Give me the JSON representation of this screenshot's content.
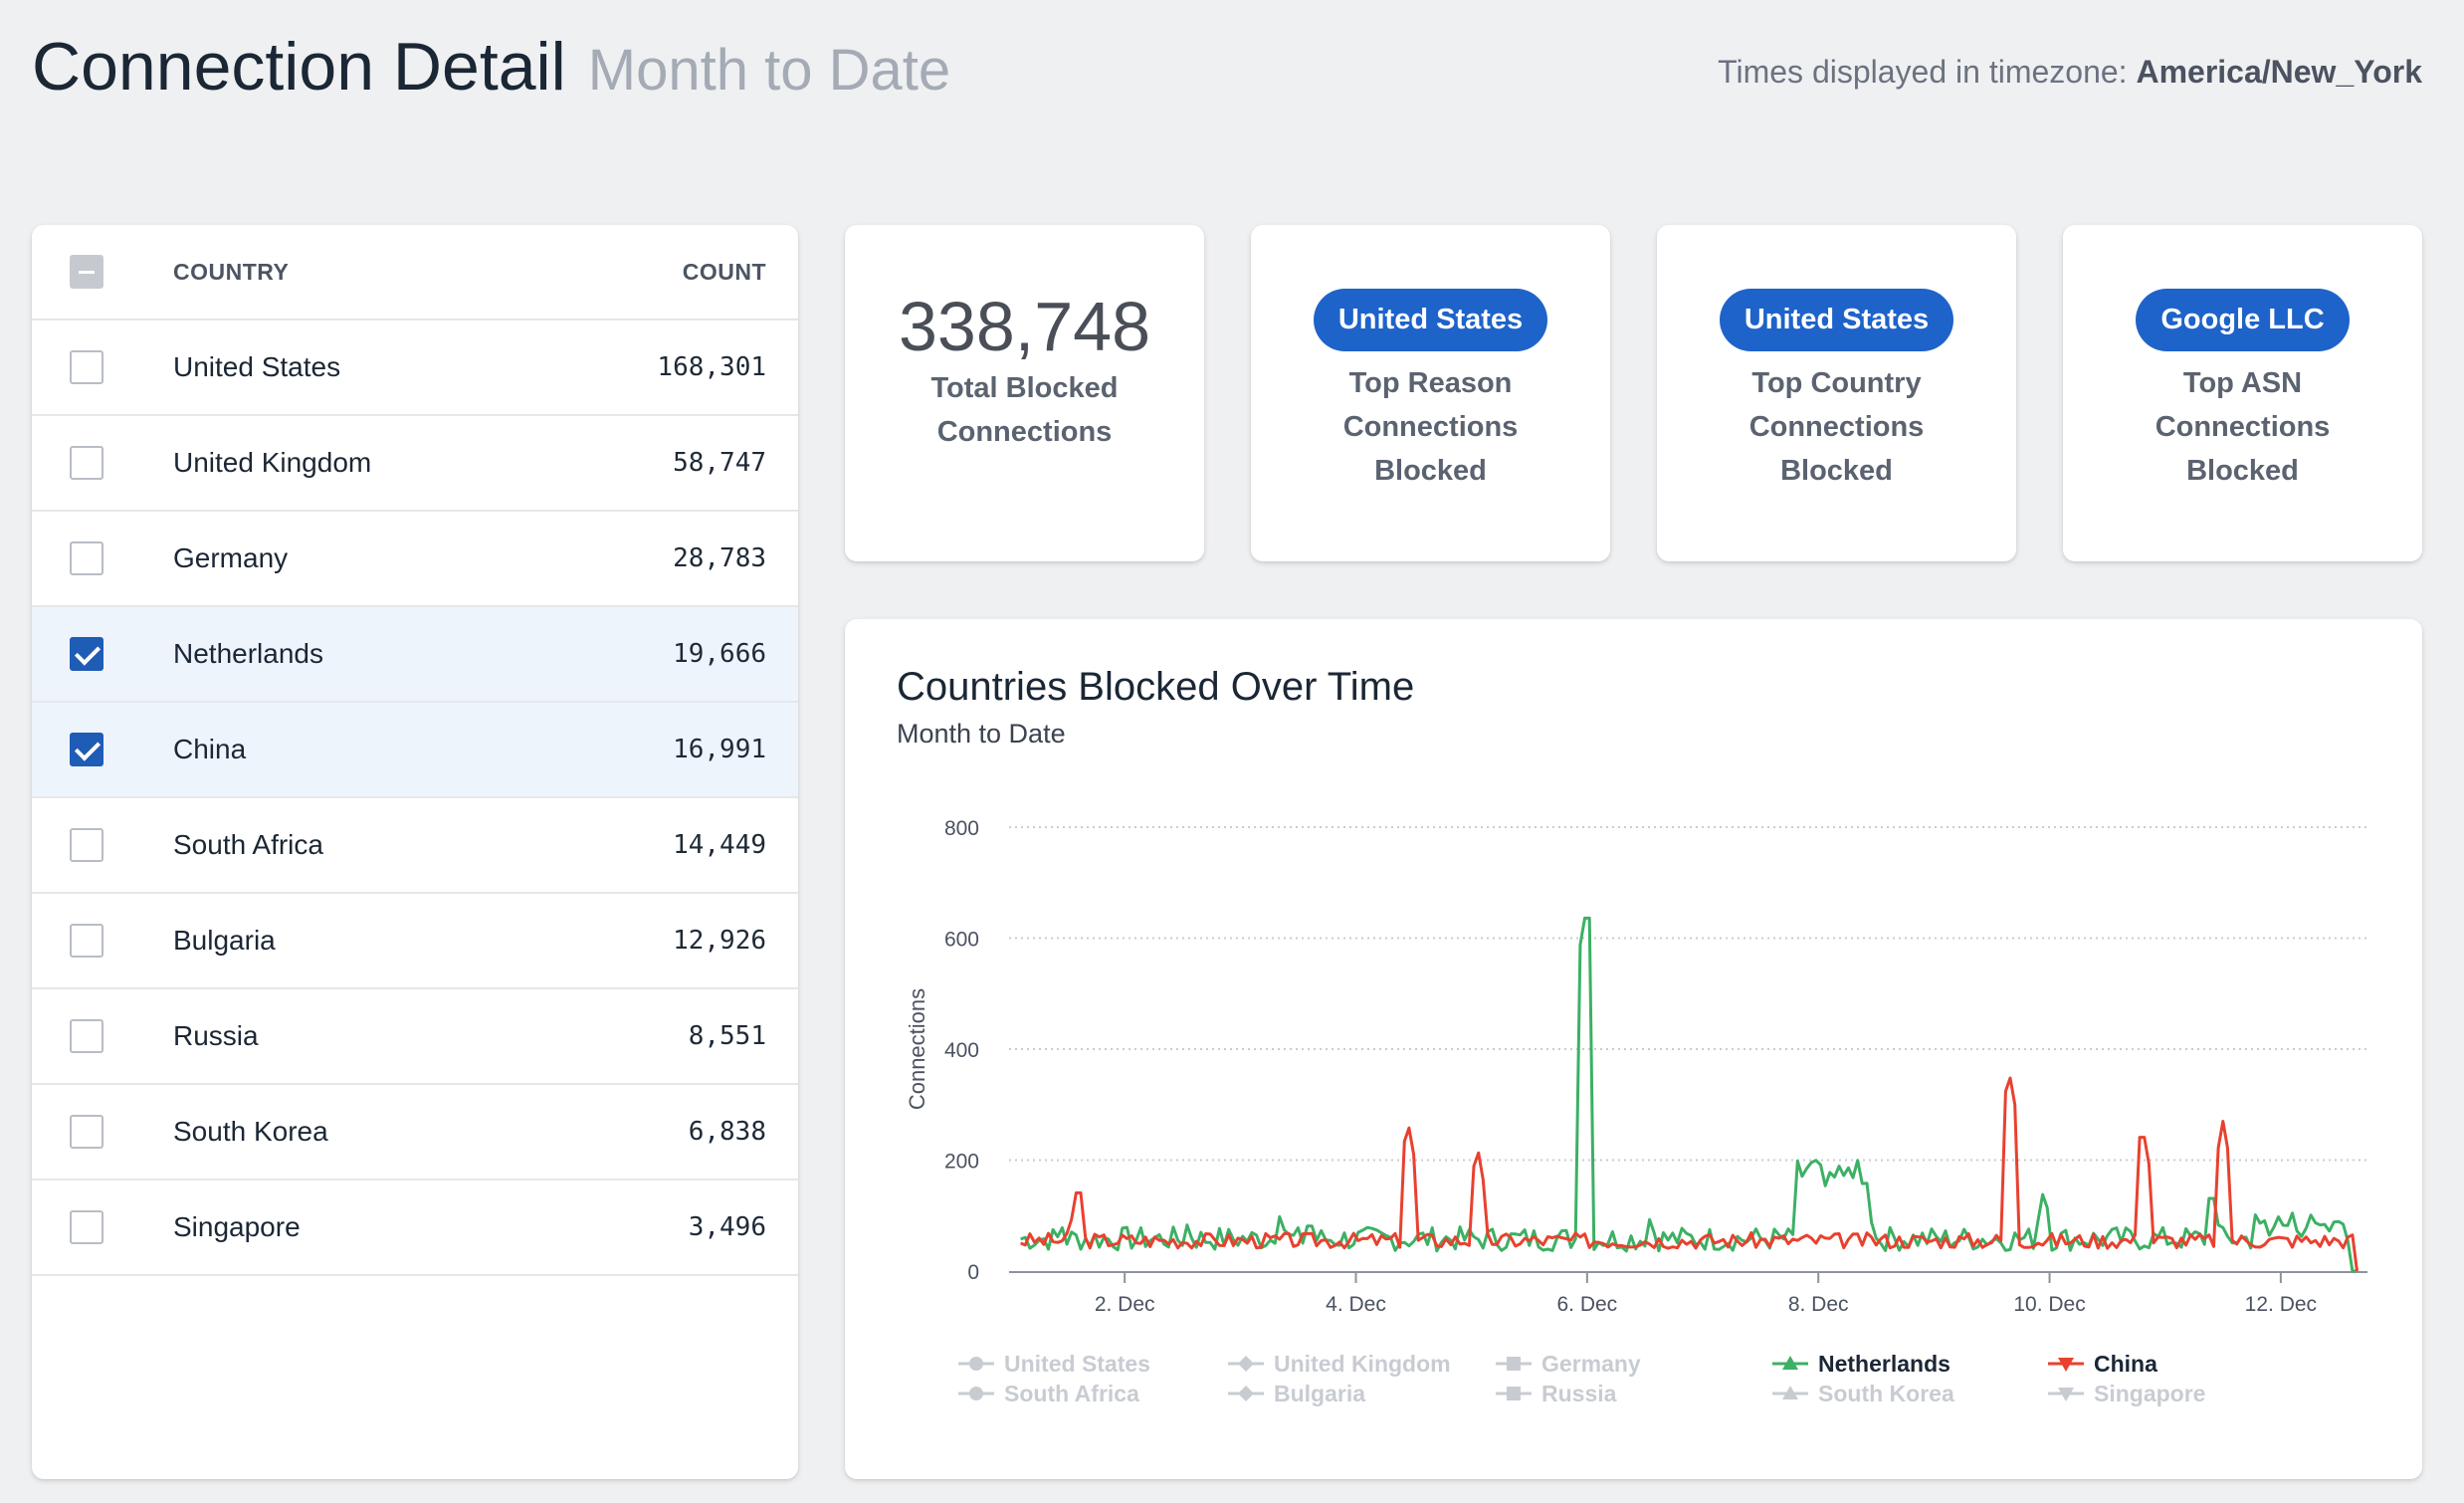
{
  "header": {
    "title": "Connection Detail",
    "subtitle": "Month to Date",
    "tz_label": "Times displayed in timezone: ",
    "tz_value": "America/New_York"
  },
  "table": {
    "col_country": "COUNTRY",
    "col_count": "COUNT",
    "rows": [
      {
        "country": "United States",
        "count": "168,301",
        "checked": false
      },
      {
        "country": "United Kingdom",
        "count": "58,747",
        "checked": false
      },
      {
        "country": "Germany",
        "count": "28,783",
        "checked": false
      },
      {
        "country": "Netherlands",
        "count": "19,666",
        "checked": true
      },
      {
        "country": "China",
        "count": "16,991",
        "checked": true
      },
      {
        "country": "South Africa",
        "count": "14,449",
        "checked": false
      },
      {
        "country": "Bulgaria",
        "count": "12,926",
        "checked": false
      },
      {
        "country": "Russia",
        "count": "8,551",
        "checked": false
      },
      {
        "country": "South Korea",
        "count": "6,838",
        "checked": false
      },
      {
        "country": "Singapore",
        "count": "3,496",
        "checked": false
      }
    ]
  },
  "stats": {
    "total": {
      "value": "338,748",
      "line1": "Total Blocked",
      "line2": "Connections"
    },
    "top_reason": {
      "pill": "United States",
      "line1": "Top Reason",
      "line2": "Connections",
      "line3": "Blocked"
    },
    "top_country": {
      "pill": "United States",
      "line1": "Top Country",
      "line2": "Connections",
      "line3": "Blocked"
    },
    "top_asn": {
      "pill": "Google LLC",
      "line1": "Top ASN",
      "line2": "Connections",
      "line3": "Blocked"
    }
  },
  "chart": {
    "title": "Countries Blocked Over Time",
    "subtitle": "Month to Date"
  },
  "colors": {
    "netherlands": "#3cb064",
    "china": "#e8412f",
    "inactive": "#c8ccd2",
    "accent": "#1e63c9"
  },
  "chart_data": {
    "type": "line",
    "title": "Countries Blocked Over Time",
    "subtitle": "Month to Date",
    "xlabel": "",
    "ylabel": "Connections",
    "ylim": [
      0,
      800
    ],
    "yticks": [
      "0",
      "200",
      "400",
      "600",
      "800"
    ],
    "xlim": [
      1,
      12.75
    ],
    "xticks": [
      {
        "x": 2,
        "label": "2. Dec"
      },
      {
        "x": 4,
        "label": "4. Dec"
      },
      {
        "x": 6,
        "label": "6. Dec"
      },
      {
        "x": 8,
        "label": "8. Dec"
      },
      {
        "x": 10,
        "label": "10. Dec"
      },
      {
        "x": 12,
        "label": "12. Dec"
      }
    ],
    "x_unit": "day of December",
    "legend": [
      {
        "name": "United States",
        "active": false,
        "marker": "circle"
      },
      {
        "name": "United Kingdom",
        "active": false,
        "marker": "diamond"
      },
      {
        "name": "Germany",
        "active": false,
        "marker": "square"
      },
      {
        "name": "Netherlands",
        "active": true,
        "marker": "triangle"
      },
      {
        "name": "China",
        "active": true,
        "marker": "triangle-down"
      },
      {
        "name": "South Africa",
        "active": false,
        "marker": "circle"
      },
      {
        "name": "Bulgaria",
        "active": false,
        "marker": "diamond"
      },
      {
        "name": "Russia",
        "active": false,
        "marker": "square"
      },
      {
        "name": "South Korea",
        "active": false,
        "marker": "triangle"
      },
      {
        "name": "Singapore",
        "active": false,
        "marker": "triangle-down"
      }
    ],
    "series": [
      {
        "name": "Netherlands",
        "color": "#3cb064",
        "baseline": 58,
        "noise": 22,
        "seed": 7,
        "ranges": [
          {
            "from": 7.8,
            "to": 8.45,
            "value": 175
          },
          {
            "from": 11.75,
            "to": 12.55,
            "value": 85
          }
        ],
        "spikes": [
          [
            1.45,
            90
          ],
          [
            2.55,
            95
          ],
          [
            3.35,
            110
          ],
          [
            3.6,
            105
          ],
          [
            6.0,
            660
          ],
          [
            6.55,
            105
          ],
          [
            8.45,
            100
          ],
          [
            9.0,
            80
          ],
          [
            9.95,
            150
          ],
          [
            11.4,
            155
          ],
          [
            12.0,
            100
          ],
          [
            12.55,
            90
          ],
          [
            12.65,
            0
          ]
        ]
      },
      {
        "name": "China",
        "color": "#e8412f",
        "baseline": 55,
        "noise": 14,
        "seed": 3,
        "ranges": [],
        "spikes": [
          [
            1.6,
            165
          ],
          [
            4.45,
            270
          ],
          [
            5.05,
            225
          ],
          [
            9.65,
            360
          ],
          [
            10.8,
            265
          ],
          [
            11.5,
            270
          ],
          [
            12.7,
            0
          ]
        ]
      }
    ]
  }
}
